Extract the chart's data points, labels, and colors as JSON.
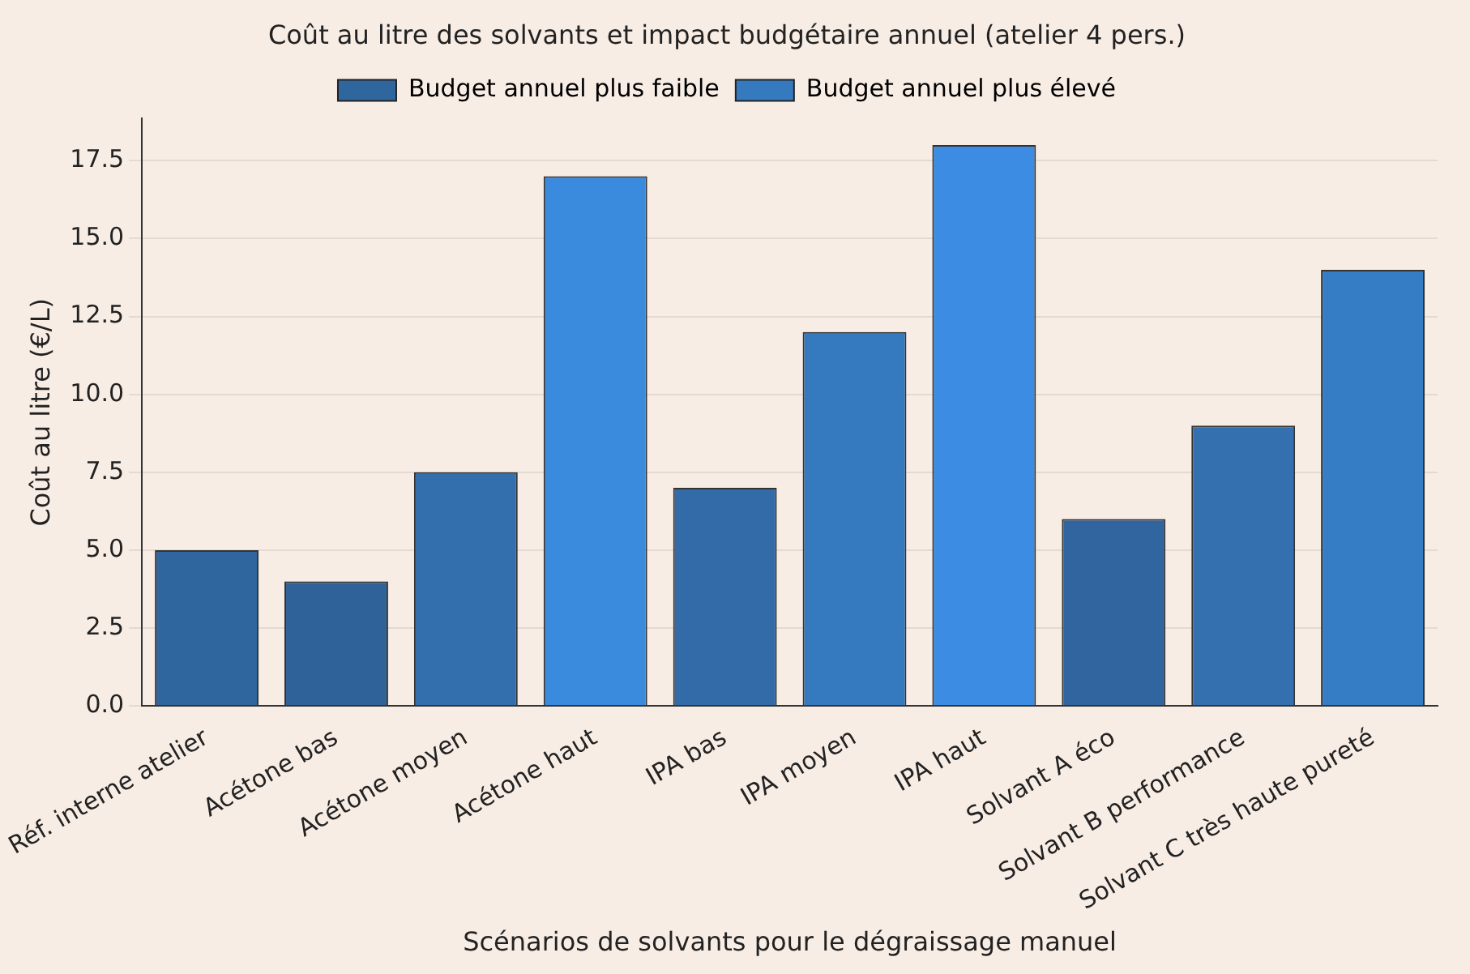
{
  "chart_data": {
    "type": "bar",
    "title": "Coût au litre des solvants et impact budgétaire annuel (atelier 4 pers.)",
    "xlabel": "Scénarios de solvants pour le dégraissage manuel",
    "ylabel": "Coût au litre (€/L)",
    "categories": [
      "Réf. interne atelier",
      "Acétone bas",
      "Acétone moyen",
      "Acétone haut",
      "IPA bas",
      "IPA moyen",
      "IPA haut",
      "Solvant A éco",
      "Solvant B performance",
      "Solvant C très haute pureté"
    ],
    "series": [
      {
        "name": "Budget annuel plus faible",
        "color": "#30669e",
        "values": [
          5,
          4,
          7.5,
          null,
          7,
          null,
          null,
          6,
          9,
          null
        ],
        "colors": [
          "#30669e",
          "#2f6299",
          "#336fad",
          null,
          "#326ba7",
          null,
          null,
          "#3065a0",
          "#3470b0",
          null
        ]
      },
      {
        "name": "Budget annuel plus élevé",
        "color": "#357abf",
        "values": [
          null,
          null,
          null,
          17,
          null,
          12,
          18,
          null,
          null,
          14
        ],
        "colors": [
          null,
          null,
          null,
          "#3a8ade",
          null,
          "#357abf",
          "#3b8ce2",
          null,
          null,
          "#357ec5"
        ]
      }
    ],
    "ylim": [
      0,
      18.85
    ],
    "yticks": [
      {
        "value": 0,
        "label": "0.0"
      },
      {
        "value": 2.5,
        "label": "2.5"
      },
      {
        "value": 5,
        "label": "5.0"
      },
      {
        "value": 7.5,
        "label": "7.5"
      },
      {
        "value": 10,
        "label": "10.0"
      },
      {
        "value": 12.5,
        "label": "12.5"
      },
      {
        "value": 15,
        "label": "15.0"
      },
      {
        "value": 17.5,
        "label": "17.5"
      }
    ],
    "grid": "y",
    "legend": "top"
  }
}
